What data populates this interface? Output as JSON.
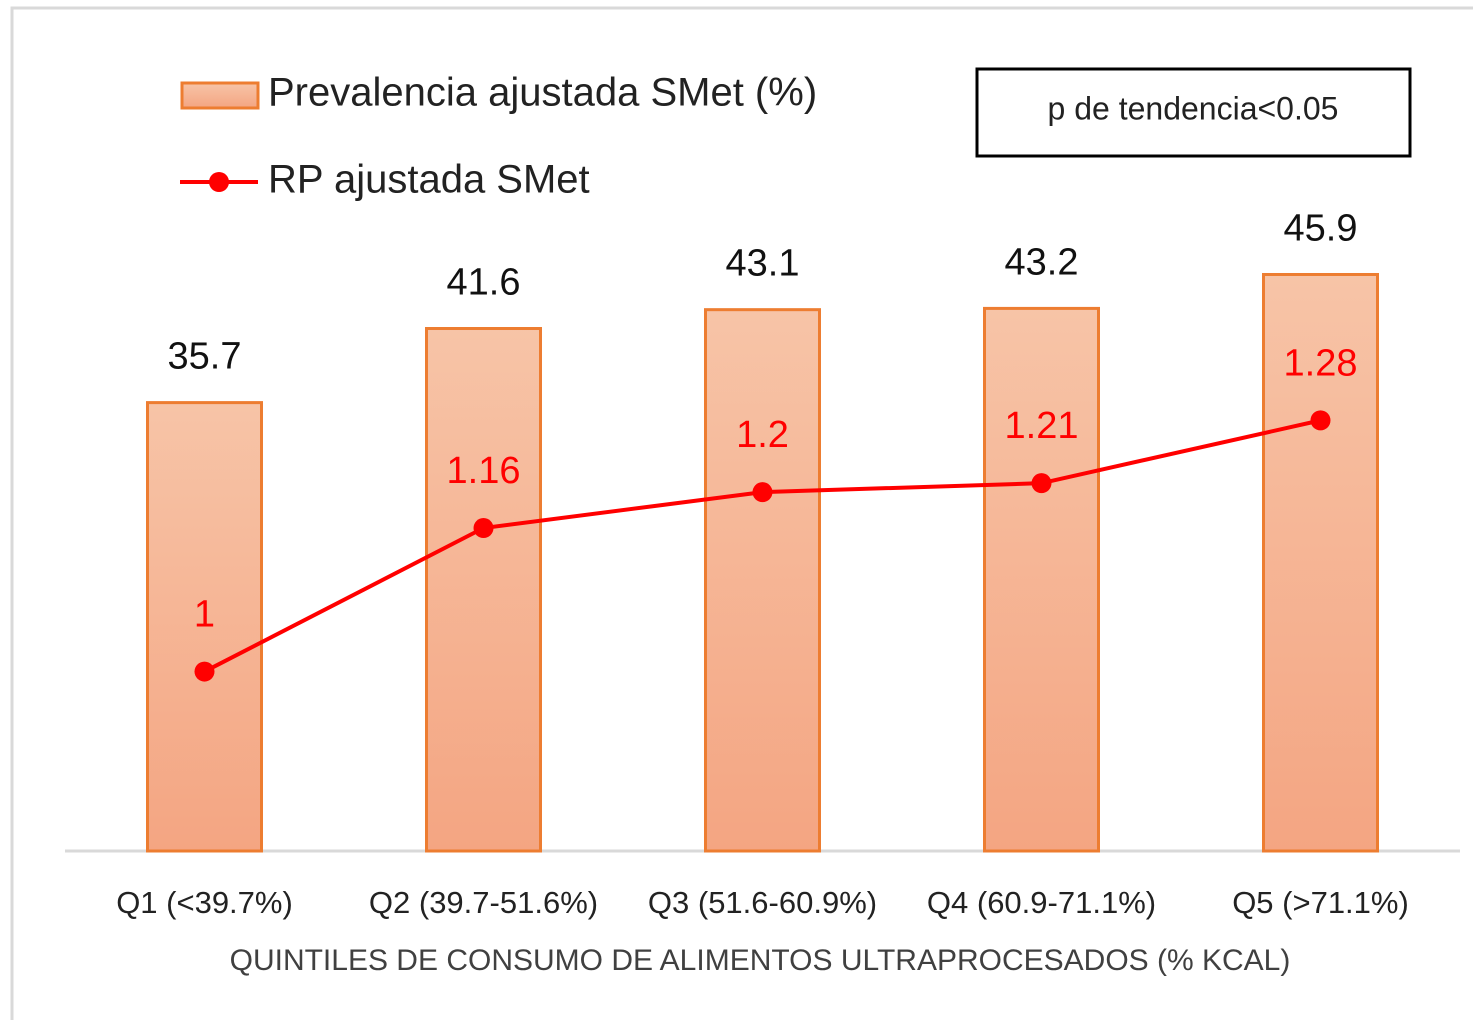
{
  "chart_data": {
    "type": "bar",
    "categories": [
      "Q1 (<39.7%)",
      "Q2 (39.7-51.6%)",
      "Q3 (51.6-60.9%)",
      "Q4 (60.9-71.1%)",
      "Q5 (>71.1%)"
    ],
    "series": [
      {
        "name": "Prevalencia ajustada SMet (%)",
        "type": "bar",
        "color": "#ed7d31",
        "values": [
          35.7,
          41.6,
          43.1,
          43.2,
          45.9
        ]
      },
      {
        "name": "RP ajustada SMet",
        "type": "line",
        "axis": "y2",
        "color": "#ff0000",
        "values": [
          1,
          1.16,
          1.2,
          1.21,
          1.28
        ]
      }
    ],
    "xlabel": "QUINTILES DE CONSUMO DE ALIMENTOS ULTRAPROCESADOS (% KCAL)",
    "annotation": "p de tendencia<0.05",
    "ylim": [
      0,
      50
    ],
    "y2lim": [
      0.8,
      1.5
    ],
    "legend": "top-left"
  }
}
